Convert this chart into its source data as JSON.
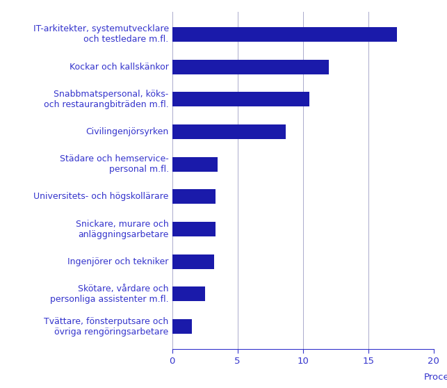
{
  "categories": [
    "Tvättare, fönsterputsare och\növriga rengöringsarbetare",
    "Skötare, vårdare och\npersonliga assistenter m.fl.",
    "Ingenjörer och tekniker",
    "Snickare, murare och\nanläggningsarbetare",
    "Universitets- och högskollärare",
    "Städare och hemservice-\npersonal m.fl.",
    "Civilingenjörsyrken",
    "Snabbmatspersonal, köks-\noch restaurangbiträden m.fl.",
    "Kockar och kallskänkor",
    "IT-arkitekter, systemutvecklare\noch testledare m.fl."
  ],
  "values": [
    1.5,
    2.5,
    3.2,
    3.3,
    3.3,
    3.5,
    8.7,
    10.5,
    12.0,
    17.2
  ],
  "bar_color": "#1a1aaa",
  "text_color": "#3333cc",
  "background_color": "#ffffff",
  "xlabel": "Procent",
  "xlim": [
    0,
    20
  ],
  "xticks": [
    0,
    5,
    10,
    15,
    20
  ],
  "grid_color": "#aaaacc",
  "label_fontsize": 9.0,
  "tick_fontsize": 9.5,
  "bar_height": 0.45
}
